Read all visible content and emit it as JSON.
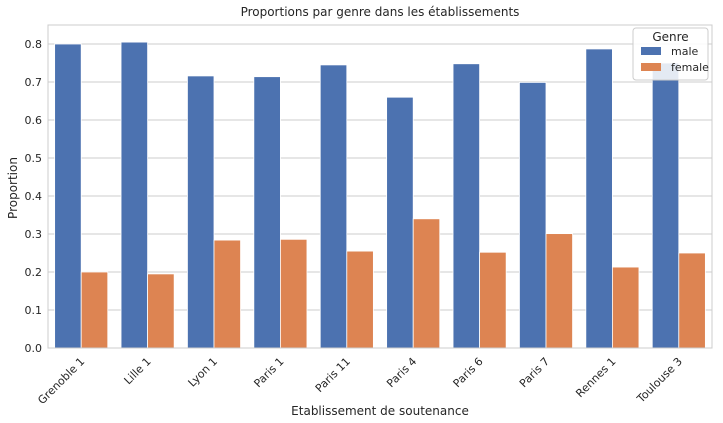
{
  "chart_data": {
    "type": "bar",
    "title": "Proportions par genre dans les établissements",
    "xlabel": "Etablissement de soutenance",
    "ylabel": "Proportion",
    "ylim": [
      0,
      0.85
    ],
    "yticks": [
      "0.0",
      "0.1",
      "0.2",
      "0.3",
      "0.4",
      "0.5",
      "0.6",
      "0.7",
      "0.8"
    ],
    "grid": true,
    "legend": {
      "title": "Genre",
      "placement": "top-right"
    },
    "categories": [
      "Grenoble 1",
      "Lille 1",
      "Lyon 1",
      "Paris 1",
      "Paris 11",
      "Paris 4",
      "Paris 6",
      "Paris 7",
      "Rennes 1",
      "Toulouse 3"
    ],
    "series": [
      {
        "name": "male",
        "color": "#4c72b0",
        "values": [
          0.8,
          0.805,
          0.716,
          0.714,
          0.745,
          0.66,
          0.748,
          0.699,
          0.787,
          0.75
        ]
      },
      {
        "name": "female",
        "color": "#dd8452",
        "values": [
          0.2,
          0.195,
          0.284,
          0.286,
          0.255,
          0.34,
          0.252,
          0.301,
          0.213,
          0.25
        ]
      }
    ]
  }
}
